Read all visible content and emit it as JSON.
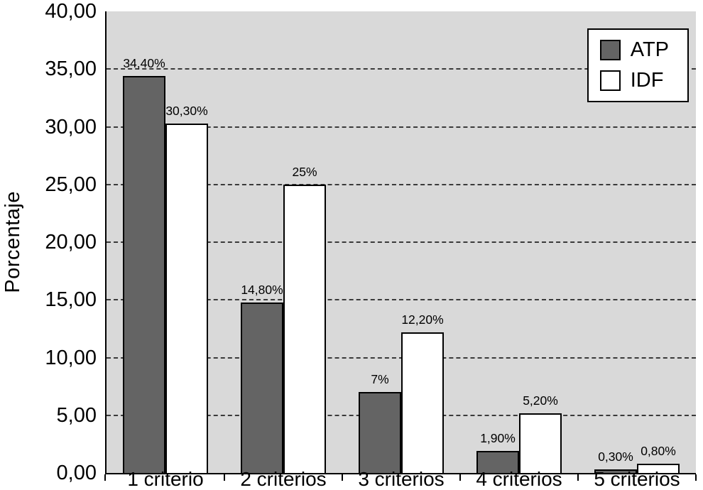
{
  "chart_data": {
    "type": "bar",
    "title": "",
    "ylabel": "Porcentaje",
    "xlabel": "",
    "ylim": [
      0,
      40
    ],
    "ytick_step": 5,
    "ytick_labels": [
      "0,00",
      "5,00",
      "10,00",
      "15,00",
      "20,00",
      "25,00",
      "30,00",
      "35,00",
      "40,00"
    ],
    "categories": [
      "1 criterio",
      "2 criterios",
      "3 criterios",
      "4 criterios",
      "5 criterios"
    ],
    "series": [
      {
        "name": "ATP",
        "color": "#646464",
        "values": [
          34.4,
          14.8,
          7.0,
          1.9,
          0.3
        ],
        "labels": [
          "34,40%",
          "14,80%",
          "7%",
          "1,90%",
          "0,30%"
        ]
      },
      {
        "name": "IDF",
        "color": "#ffffff",
        "values": [
          30.3,
          25.0,
          12.2,
          5.2,
          0.8
        ],
        "labels": [
          "30,30%",
          "25%",
          "12,20%",
          "5,20%",
          "0,80%"
        ]
      }
    ],
    "legend": {
      "position": "top-right",
      "entries": [
        "ATP",
        "IDF"
      ]
    },
    "grid": "horizontal-dashed",
    "plot_background": "#d9d9d9",
    "bar_border_color": "#000000"
  }
}
